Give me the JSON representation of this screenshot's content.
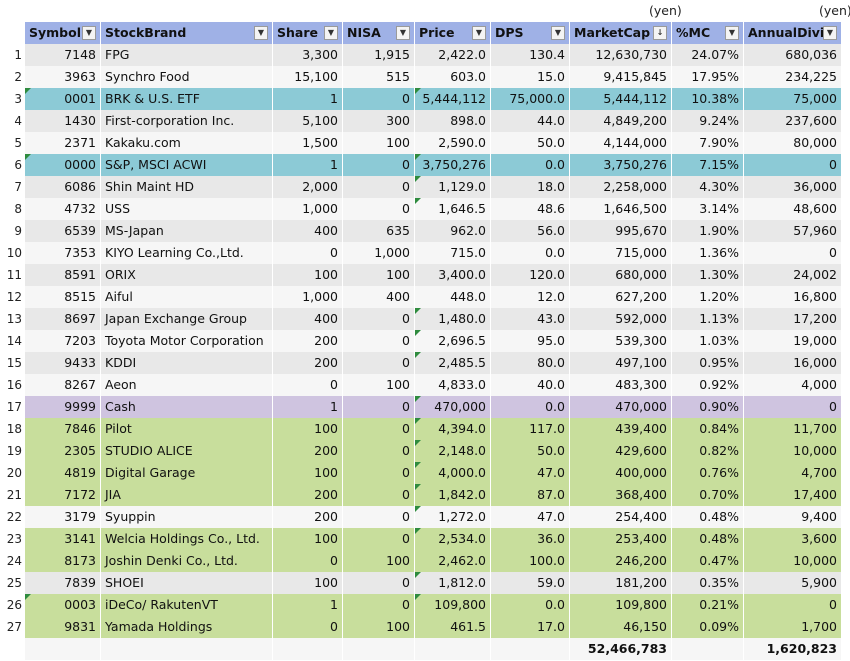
{
  "units": {
    "market_cap_unit": "(yen)",
    "annual_divi_unit": "(yen)"
  },
  "columns": [
    "Symbol",
    "StockBrand",
    "Share",
    "NISA",
    "Price",
    "DPS",
    "MarketCap",
    "%MC",
    "AnnualDivi"
  ],
  "sort_indicator": "↓",
  "filter_glyph": "▼",
  "rows": [
    {
      "n": "1",
      "symbol": "7148",
      "brand": "FPG",
      "share": "3,300",
      "nisa": "1,915",
      "price": "2,422.0",
      "dps": "130.4",
      "mc": "12,630,730",
      "pmc": "24.07%",
      "div": "680,036",
      "style": "odd"
    },
    {
      "n": "2",
      "symbol": "3963",
      "brand": "Synchro Food",
      "share": "15,100",
      "nisa": "515",
      "price": "603.0",
      "dps": "15.0",
      "mc": "9,415,845",
      "pmc": "17.95%",
      "div": "234,225",
      "style": "even"
    },
    {
      "n": "3",
      "symbol": "0001",
      "brand": "BRK & U.S. ETF",
      "share": "1",
      "nisa": "0",
      "price": "5,444,112",
      "dps": "75,000.0",
      "mc": "5,444,112",
      "pmc": "10.38%",
      "div": "75,000",
      "style": "blue"
    },
    {
      "n": "4",
      "symbol": "1430",
      "brand": "First-corporation Inc.",
      "share": "5,100",
      "nisa": "300",
      "price": "898.0",
      "dps": "44.0",
      "mc": "4,849,200",
      "pmc": "9.24%",
      "div": "237,600",
      "style": "odd"
    },
    {
      "n": "5",
      "symbol": "2371",
      "brand": "Kakaku.com",
      "share": "1,500",
      "nisa": "100",
      "price": "2,590.0",
      "dps": "50.0",
      "mc": "4,144,000",
      "pmc": "7.90%",
      "div": "80,000",
      "style": "even"
    },
    {
      "n": "6",
      "symbol": "0000",
      "brand": "S&P, MSCI ACWI",
      "share": "1",
      "nisa": "0",
      "price": "3,750,276",
      "dps": "0.0",
      "mc": "3,750,276",
      "pmc": "7.15%",
      "div": "0",
      "style": "blue"
    },
    {
      "n": "7",
      "symbol": "6086",
      "brand": "Shin Maint HD",
      "share": "2,000",
      "nisa": "0",
      "price": "1,129.0",
      "dps": "18.0",
      "mc": "2,258,000",
      "pmc": "4.30%",
      "div": "36,000",
      "style": "odd"
    },
    {
      "n": "8",
      "symbol": "4732",
      "brand": "USS",
      "share": "1,000",
      "nisa": "0",
      "price": "1,646.5",
      "dps": "48.6",
      "mc": "1,646,500",
      "pmc": "3.14%",
      "div": "48,600",
      "style": "even"
    },
    {
      "n": "9",
      "symbol": "6539",
      "brand": "MS-Japan",
      "share": "400",
      "nisa": "635",
      "price": "962.0",
      "dps": "56.0",
      "mc": "995,670",
      "pmc": "1.90%",
      "div": "57,960",
      "style": "odd"
    },
    {
      "n": "10",
      "symbol": "7353",
      "brand": "KIYO Learning Co.,Ltd.",
      "share": "0",
      "nisa": "1,000",
      "price": "715.0",
      "dps": "0.0",
      "mc": "715,000",
      "pmc": "1.36%",
      "div": "0",
      "style": "even"
    },
    {
      "n": "11",
      "symbol": "8591",
      "brand": "ORIX",
      "share": "100",
      "nisa": "100",
      "price": "3,400.0",
      "dps": "120.0",
      "mc": "680,000",
      "pmc": "1.30%",
      "div": "24,002",
      "style": "odd"
    },
    {
      "n": "12",
      "symbol": "8515",
      "brand": "Aiful",
      "share": "1,000",
      "nisa": "400",
      "price": "448.0",
      "dps": "12.0",
      "mc": "627,200",
      "pmc": "1.20%",
      "div": "16,800",
      "style": "even"
    },
    {
      "n": "13",
      "symbol": "8697",
      "brand": "Japan Exchange Group",
      "share": "400",
      "nisa": "0",
      "price": "1,480.0",
      "dps": "43.0",
      "mc": "592,000",
      "pmc": "1.13%",
      "div": "17,200",
      "style": "odd"
    },
    {
      "n": "14",
      "symbol": "7203",
      "brand": "Toyota Motor Corporation",
      "share": "200",
      "nisa": "0",
      "price": "2,696.5",
      "dps": "95.0",
      "mc": "539,300",
      "pmc": "1.03%",
      "div": "19,000",
      "style": "even"
    },
    {
      "n": "15",
      "symbol": "9433",
      "brand": "KDDI",
      "share": "200",
      "nisa": "0",
      "price": "2,485.5",
      "dps": "80.0",
      "mc": "497,100",
      "pmc": "0.95%",
      "div": "16,000",
      "style": "odd"
    },
    {
      "n": "16",
      "symbol": "8267",
      "brand": "Aeon",
      "share": "0",
      "nisa": "100",
      "price": "4,833.0",
      "dps": "40.0",
      "mc": "483,300",
      "pmc": "0.92%",
      "div": "4,000",
      "style": "even"
    },
    {
      "n": "17",
      "symbol": "9999",
      "brand": "Cash",
      "share": "1",
      "nisa": "0",
      "price": "470,000",
      "dps": "0.0",
      "mc": "470,000",
      "pmc": "0.90%",
      "div": "0",
      "style": "purple"
    },
    {
      "n": "18",
      "symbol": "7846",
      "brand": "Pilot",
      "share": "100",
      "nisa": "0",
      "price": "4,394.0",
      "dps": "117.0",
      "mc": "439,400",
      "pmc": "0.84%",
      "div": "11,700",
      "style": "green"
    },
    {
      "n": "19",
      "symbol": "2305",
      "brand": "STUDIO ALICE",
      "share": "200",
      "nisa": "0",
      "price": "2,148.0",
      "dps": "50.0",
      "mc": "429,600",
      "pmc": "0.82%",
      "div": "10,000",
      "style": "green"
    },
    {
      "n": "20",
      "symbol": "4819",
      "brand": "Digital Garage",
      "share": "100",
      "nisa": "0",
      "price": "4,000.0",
      "dps": "47.0",
      "mc": "400,000",
      "pmc": "0.76%",
      "div": "4,700",
      "style": "green"
    },
    {
      "n": "21",
      "symbol": "7172",
      "brand": "JIA",
      "share": "200",
      "nisa": "0",
      "price": "1,842.0",
      "dps": "87.0",
      "mc": "368,400",
      "pmc": "0.70%",
      "div": "17,400",
      "style": "green"
    },
    {
      "n": "22",
      "symbol": "3179",
      "brand": "Syuppin",
      "share": "200",
      "nisa": "0",
      "price": "1,272.0",
      "dps": "47.0",
      "mc": "254,400",
      "pmc": "0.48%",
      "div": "9,400",
      "style": "even"
    },
    {
      "n": "23",
      "symbol": "3141",
      "brand": "Welcia Holdings Co., Ltd.",
      "share": "100",
      "nisa": "0",
      "price": "2,534.0",
      "dps": "36.0",
      "mc": "253,400",
      "pmc": "0.48%",
      "div": "3,600",
      "style": "green"
    },
    {
      "n": "24",
      "symbol": "8173",
      "brand": "Joshin Denki Co., Ltd.",
      "share": "0",
      "nisa": "100",
      "price": "2,462.0",
      "dps": "100.0",
      "mc": "246,200",
      "pmc": "0.47%",
      "div": "10,000",
      "style": "green"
    },
    {
      "n": "25",
      "symbol": "7839",
      "brand": "SHOEI",
      "share": "100",
      "nisa": "0",
      "price": "1,812.0",
      "dps": "59.0",
      "mc": "181,200",
      "pmc": "0.35%",
      "div": "5,900",
      "style": "odd"
    },
    {
      "n": "26",
      "symbol": "0003",
      "brand": "iDeCo/ RakutenVT",
      "share": "1",
      "nisa": "0",
      "price": "109,800",
      "dps": "0.0",
      "mc": "109,800",
      "pmc": "0.21%",
      "div": "0",
      "style": "green"
    },
    {
      "n": "27",
      "symbol": "9831",
      "brand": "Yamada Holdings",
      "share": "0",
      "nisa": "100",
      "price": "461.5",
      "dps": "17.0",
      "mc": "46,150",
      "pmc": "0.09%",
      "div": "1,700",
      "style": "green"
    }
  ],
  "totals": {
    "market_cap": "52,466,783",
    "annual_divi": "1,620,823"
  },
  "colors": {
    "header": "#9fb1e6",
    "blue": "#8ccad6",
    "purple": "#cfc4e0",
    "green": "#c8de9c",
    "odd": "#e8e8e8",
    "even": "#f6f6f6",
    "comment_marker": "#2e8b3e"
  }
}
